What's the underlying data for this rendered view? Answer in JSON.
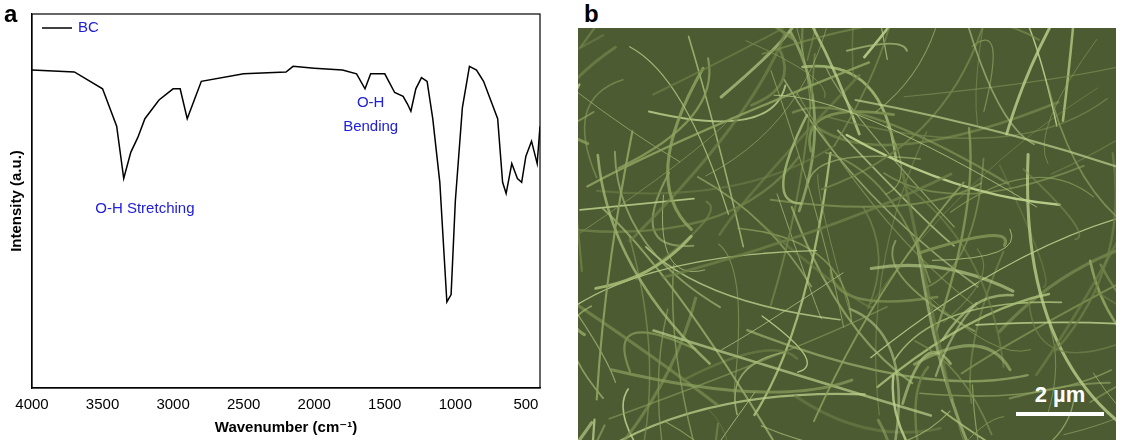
{
  "chart_data": {
    "panel_label": "a",
    "type": "line",
    "x_label": "Wavenumber (cm⁻¹)",
    "y_label": "Intensity (a.u.)",
    "xlim": [
      4000,
      400
    ],
    "xticks": [
      4000,
      3500,
      3000,
      2500,
      2000,
      1500,
      1000,
      500
    ],
    "ylim": [
      0,
      100
    ],
    "tick_labels": "x",
    "grid": false,
    "legend": "upper left",
    "x": [
      4000,
      3700,
      3500,
      3400,
      3350,
      3300,
      3250,
      3200,
      3100,
      3000,
      2950,
      2900,
      2850,
      2800,
      2500,
      2200,
      2150,
      2000,
      1800,
      1700,
      1640,
      1600,
      1500,
      1430,
      1370,
      1340,
      1315,
      1280,
      1240,
      1200,
      1160,
      1110,
      1060,
      1030,
      1000,
      950,
      900,
      850,
      800,
      700,
      665,
      640,
      600,
      560,
      530,
      500,
      460,
      420,
      400
    ],
    "series": [
      {
        "name": "BC",
        "color": "#000000",
        "values": [
          85,
          84.5,
          80,
          70,
          56,
          63,
          67,
          72,
          77,
          80,
          80,
          72,
          77,
          82,
          84,
          84.5,
          86,
          85.5,
          85,
          84,
          80,
          84,
          84,
          79,
          78,
          76,
          74,
          80,
          83,
          82,
          72,
          55,
          23,
          25,
          50,
          75,
          86,
          85,
          82,
          72,
          55,
          52,
          60,
          56,
          55,
          62,
          66,
          60,
          70
        ]
      }
    ],
    "annotations": [
      {
        "text": "O-H Stretching",
        "x": 3200,
        "y": 48
      },
      {
        "text": "O-H\nBending",
        "x": 1600,
        "y": 73
      }
    ]
  },
  "image_panel": {
    "panel_label": "b",
    "scale_bar": "2 µm"
  }
}
